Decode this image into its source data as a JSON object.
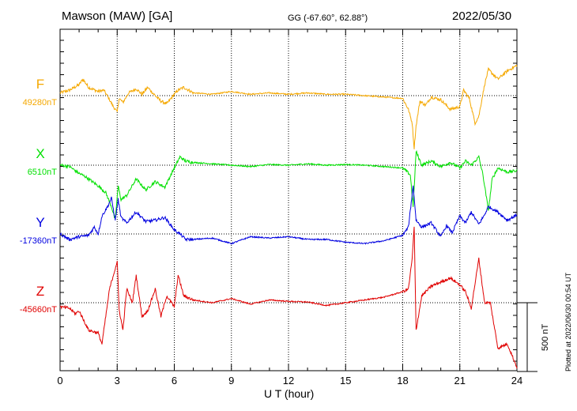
{
  "header": {
    "station": "Mawson (MAW)  [GA]",
    "coordinates": "GG (-67.60°,  62.88°)",
    "date": "2022/05/30"
  },
  "footer": {
    "plotted": "Plotted at 2022/06/30 00:54 UT"
  },
  "chart_data": {
    "type": "line",
    "title": "Mawson (MAW)  [GA]",
    "xlabel": "U T (hour)",
    "ylabel": "",
    "xlim": [
      0,
      24
    ],
    "x_ticks": [
      "0",
      "3",
      "6",
      "9",
      "12",
      "15",
      "18",
      "21",
      "24"
    ],
    "grid": true,
    "scale_bar": "500 nT",
    "scale_bar_nT": 500,
    "series": [
      {
        "name": "F",
        "baseline_label": "49280nT",
        "baseline_nT": 49280,
        "color": "#f5a800",
        "x": [
          0,
          0.5,
          1,
          1.2,
          1.5,
          2,
          2.3,
          2.6,
          2.8,
          3,
          3.1,
          3.3,
          3.6,
          4,
          4.3,
          4.6,
          5,
          5.3,
          5.6,
          6,
          6.2,
          6.5,
          7,
          8,
          9,
          10,
          11,
          12,
          13,
          14,
          15,
          16,
          17,
          18,
          18.3,
          18.5,
          18.6,
          18.7,
          18.9,
          19.2,
          19.5,
          20,
          20.5,
          21,
          21.2,
          21.5,
          21.8,
          22,
          22.3,
          22.5,
          23,
          23.5,
          24
        ],
        "values": [
          20,
          40,
          80,
          120,
          60,
          30,
          40,
          -30,
          -80,
          -120,
          -20,
          -50,
          20,
          50,
          10,
          60,
          0,
          -40,
          -60,
          10,
          40,
          60,
          20,
          10,
          30,
          10,
          20,
          10,
          20,
          10,
          10,
          0,
          -10,
          -20,
          -100,
          -200,
          -380,
          -220,
          -40,
          -70,
          -10,
          -30,
          -100,
          -80,
          40,
          -20,
          -200,
          -150,
          80,
          190,
          120,
          180,
          220
        ]
      },
      {
        "name": "X",
        "baseline_label": "6510nT",
        "baseline_nT": 6510,
        "color": "#00e000",
        "x": [
          0,
          0.5,
          1,
          1.3,
          1.6,
          2,
          2.4,
          2.7,
          2.9,
          3.05,
          3.2,
          3.5,
          4,
          4.5,
          5,
          5.5,
          6,
          6.3,
          6.6,
          7,
          8,
          9,
          10,
          11,
          12,
          13,
          14,
          15,
          16,
          17,
          18,
          18.4,
          18.55,
          18.7,
          19,
          19.5,
          20,
          20.5,
          21,
          21.3,
          21.6,
          22,
          22.2,
          22.5,
          22.7,
          23,
          23.5,
          24
        ],
        "values": [
          0,
          -10,
          -60,
          -80,
          -110,
          -150,
          -200,
          -300,
          -400,
          -150,
          -250,
          -220,
          -100,
          -180,
          -120,
          -160,
          -20,
          60,
          30,
          20,
          10,
          0,
          -10,
          5,
          0,
          10,
          0,
          5,
          0,
          -10,
          -20,
          -70,
          -300,
          100,
          0,
          30,
          -10,
          20,
          -20,
          30,
          0,
          60,
          -60,
          -330,
          -100,
          -20,
          -50,
          -40
        ]
      },
      {
        "name": "Y",
        "baseline_label": "-17360nT",
        "baseline_nT": -17360,
        "color": "#0000e0",
        "x": [
          0,
          0.5,
          1,
          1.5,
          1.8,
          2,
          2.2,
          2.5,
          2.7,
          2.9,
          3.05,
          3.2,
          3.5,
          4,
          4.5,
          5,
          5.5,
          6,
          6.3,
          6.6,
          7,
          8,
          9,
          10,
          11,
          12,
          13,
          14,
          15,
          16,
          17,
          18,
          18.3,
          18.55,
          18.7,
          19,
          19.5,
          20,
          20.3,
          20.6,
          21,
          21.3,
          21.6,
          22,
          22.3,
          22.5,
          23,
          23.5,
          24
        ],
        "values": [
          0,
          -40,
          -20,
          -10,
          50,
          0,
          130,
          200,
          260,
          100,
          250,
          120,
          80,
          160,
          90,
          100,
          120,
          30,
          0,
          -40,
          -40,
          -30,
          -70,
          -20,
          -30,
          -20,
          -40,
          -40,
          -60,
          -70,
          -50,
          -10,
          50,
          350,
          100,
          50,
          80,
          -20,
          60,
          10,
          130,
          80,
          160,
          70,
          140,
          200,
          160,
          100,
          140
        ]
      },
      {
        "name": "Z",
        "baseline_label": "-45660nT",
        "baseline_nT": -45660,
        "color": "#e00000",
        "x": [
          0,
          0.5,
          0.8,
          1,
          1.5,
          2,
          2.2,
          2.4,
          2.6,
          2.8,
          3,
          3.1,
          3.3,
          3.5,
          3.8,
          4,
          4.3,
          4.6,
          5,
          5.3,
          5.6,
          6,
          6.2,
          6.5,
          7,
          8,
          9,
          10,
          11,
          12,
          13,
          14,
          15,
          16,
          17,
          17.5,
          18,
          18.3,
          18.5,
          18.6,
          18.7,
          19,
          19.5,
          20,
          20.5,
          21,
          21.3,
          21.6,
          22,
          22.3,
          22.6,
          23,
          23.5,
          24
        ],
        "values": [
          -30,
          -40,
          -80,
          -60,
          -200,
          -220,
          -300,
          -100,
          100,
          200,
          300,
          -50,
          -200,
          100,
          0,
          200,
          -100,
          -60,
          100,
          -100,
          50,
          -30,
          200,
          50,
          20,
          0,
          30,
          -10,
          20,
          10,
          5,
          -20,
          0,
          20,
          40,
          60,
          80,
          100,
          320,
          550,
          -200,
          50,
          120,
          150,
          180,
          130,
          80,
          -40,
          320,
          0,
          0,
          -330,
          -300,
          -470
        ]
      }
    ]
  }
}
